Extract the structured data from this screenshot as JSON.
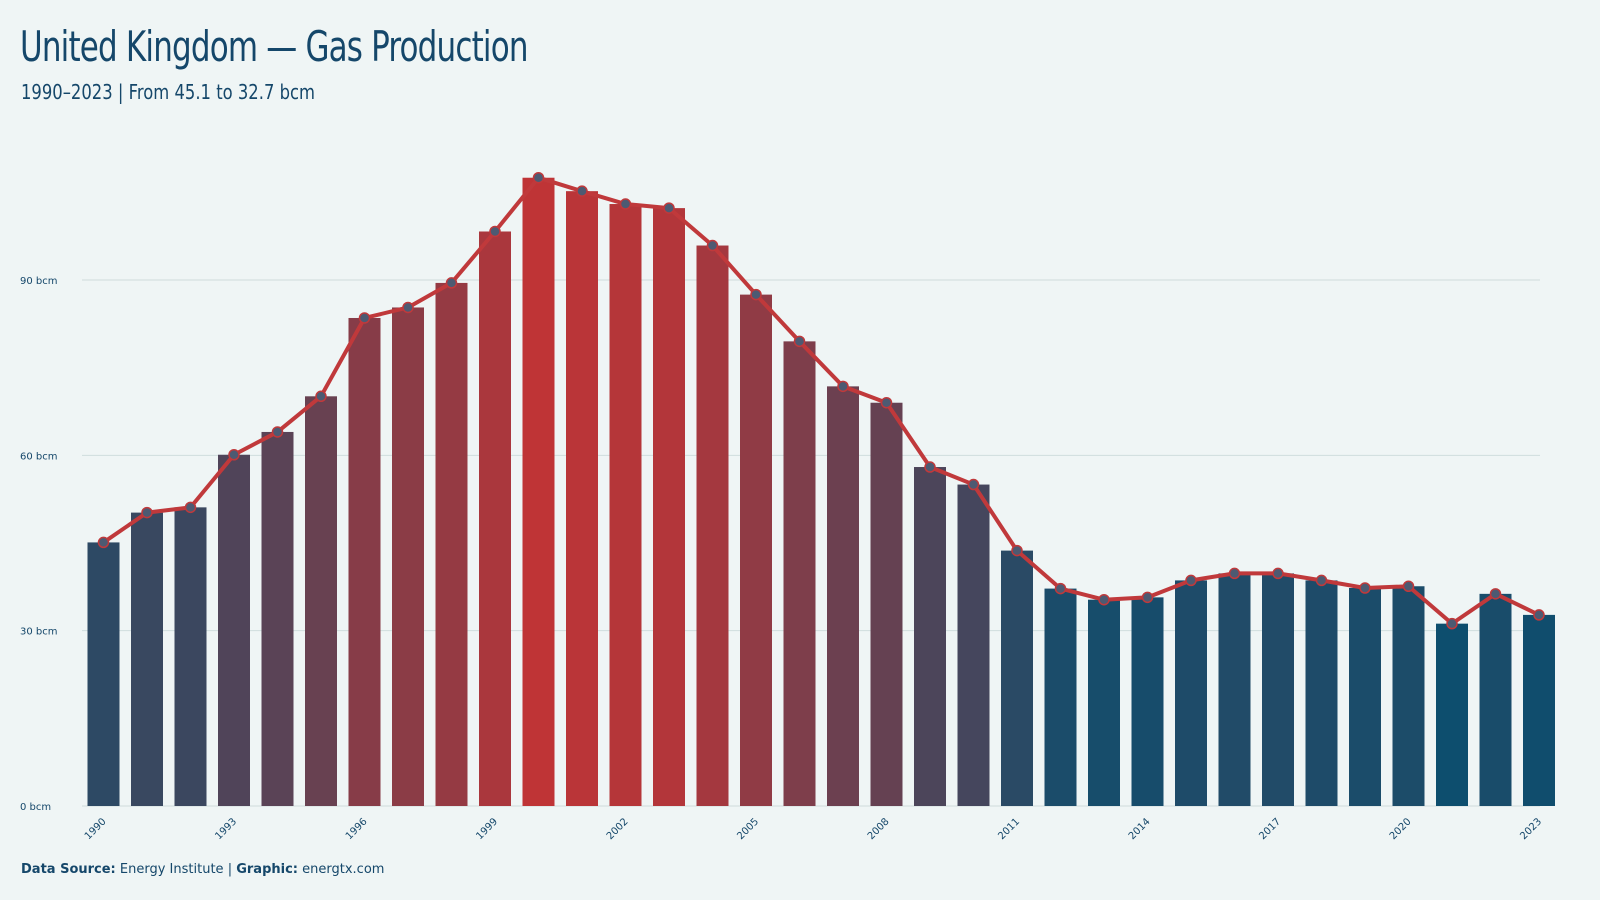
{
  "header": {
    "title": "United Kingdom — Gas Production",
    "subtitle": "1990–2023 | From 45.1 to 32.7 bcm"
  },
  "footer": {
    "source_label": "Data Source:",
    "source_value": "Energy Institute",
    "separator": "|",
    "graphic_label": "Graphic:",
    "graphic_value": "energtx.com"
  },
  "colors": {
    "background": "#eff5f5",
    "text": "#15476a",
    "line": "#c0393b",
    "bar_low": "#0d4e6e",
    "bar_high": "#bf3436",
    "grid": "#cfdcdc"
  },
  "chart_data": {
    "type": "bar",
    "title": "United Kingdom — Gas Production",
    "subtitle": "1990–2023 | From 45.1 to 32.7 bcm",
    "categories": [
      "1990",
      "1991",
      "1992",
      "1993",
      "1994",
      "1995",
      "1996",
      "1997",
      "1998",
      "1999",
      "2000",
      "2001",
      "2002",
      "2003",
      "2004",
      "2005",
      "2006",
      "2007",
      "2008",
      "2009",
      "2010",
      "2011",
      "2012",
      "2013",
      "2014",
      "2015",
      "2016",
      "2017",
      "2018",
      "2019",
      "2020",
      "2021",
      "2022",
      "2023"
    ],
    "x_tick_labels": [
      "1990",
      "1993",
      "1996",
      "1999",
      "2002",
      "2005",
      "2008",
      "2011",
      "2014",
      "2017",
      "2020",
      "2023"
    ],
    "series": [
      {
        "values": [
          45.1,
          50.2,
          51.1,
          60.1,
          64.0,
          70.1,
          83.5,
          85.3,
          89.5,
          98.3,
          107.5,
          105.2,
          103.0,
          102.3,
          95.9,
          87.5,
          79.5,
          71.8,
          69.0,
          58.0,
          55.0,
          43.7,
          37.2,
          35.3,
          35.7,
          38.6,
          39.8,
          39.8,
          38.6,
          37.3,
          37.6,
          31.2,
          36.3,
          32.7
        ]
      }
    ],
    "y_ticks": [
      0,
      30,
      60,
      90
    ],
    "y_tick_labels": [
      "0 bcm",
      "30 bcm",
      "60 bcm",
      "90 bcm"
    ],
    "ylim": [
      0,
      110
    ],
    "overlay": "line-with-markers",
    "grid": "horizontal",
    "legend": "none"
  }
}
